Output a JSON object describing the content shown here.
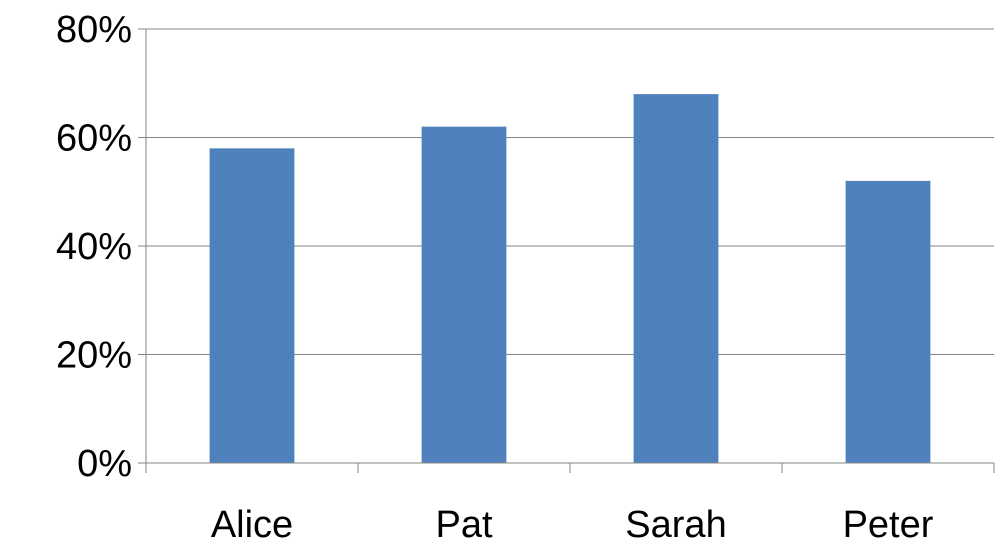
{
  "chart_data": {
    "type": "bar",
    "categories": [
      "Alice",
      "Pat",
      "Sarah",
      "Peter"
    ],
    "values": [
      58,
      62,
      68,
      52
    ],
    "y_tick_labels": [
      "0%",
      "20%",
      "40%",
      "60%",
      "80%"
    ],
    "y_ticks": [
      0,
      20,
      40,
      60,
      80
    ],
    "ylim": [
      0,
      80
    ],
    "value_unit": "%",
    "grid": true,
    "legend": "none",
    "bar_color": "#4F81BD",
    "grid_color": "#868686"
  }
}
